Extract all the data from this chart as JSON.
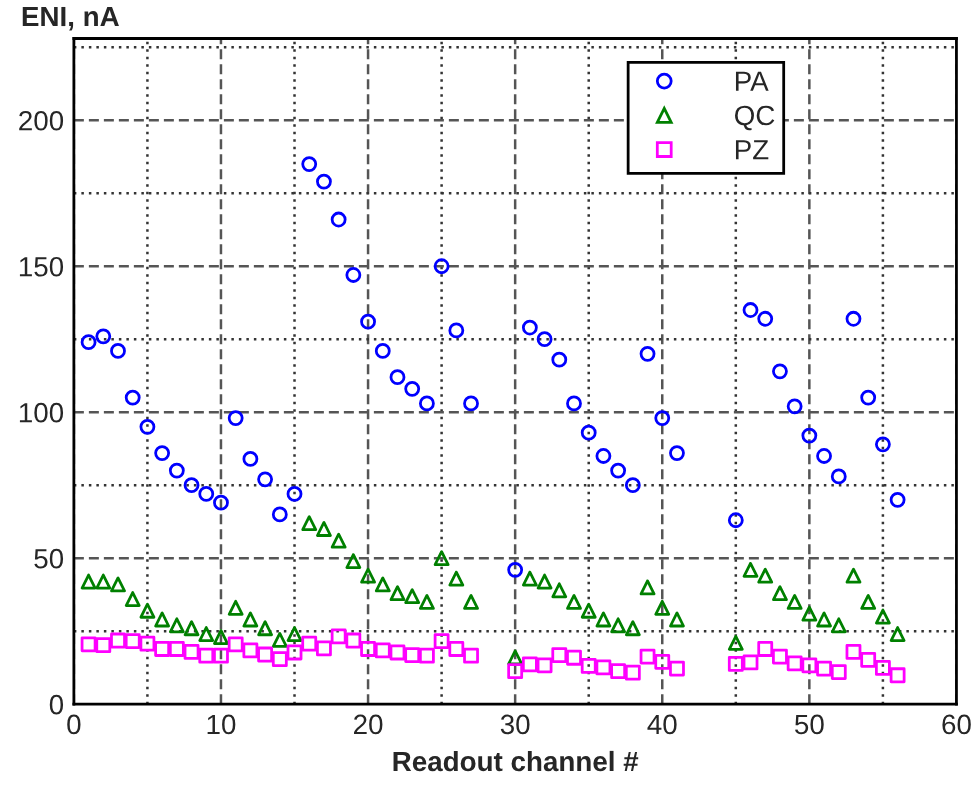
{
  "chart_data": {
    "type": "scatter",
    "ylabel": "ENI, nA",
    "xlabel": "Readout channel #",
    "x": [
      1,
      2,
      3,
      4,
      5,
      6,
      7,
      8,
      9,
      10,
      11,
      12,
      13,
      14,
      15,
      16,
      17,
      18,
      19,
      20,
      21,
      22,
      23,
      24,
      25,
      26,
      27,
      30,
      31,
      32,
      33,
      34,
      35,
      36,
      37,
      38,
      39,
      40,
      41,
      45,
      46,
      47,
      48,
      49,
      50,
      51,
      52,
      53,
      54,
      55,
      56
    ],
    "series": [
      {
        "name": "PA",
        "color": "#0000ff",
        "marker": "circle",
        "values": [
          124,
          126,
          121,
          105,
          95,
          86,
          80,
          75,
          72,
          69,
          98,
          84,
          77,
          65,
          72,
          185,
          179,
          166,
          147,
          131,
          121,
          112,
          108,
          103,
          150,
          128,
          103,
          46,
          129,
          125,
          118,
          103,
          93,
          85,
          80,
          75,
          120,
          98,
          86,
          63,
          135,
          132,
          114,
          102,
          92,
          85,
          78,
          132,
          105,
          89,
          70
        ]
      },
      {
        "name": "QC",
        "color": "#008000",
        "marker": "triangle",
        "values": [
          42,
          42,
          41,
          36,
          32,
          29,
          27,
          26,
          24,
          23,
          33,
          29,
          26,
          22,
          24,
          62,
          60,
          56,
          49,
          44,
          41,
          38,
          37,
          35,
          50,
          43,
          35,
          16,
          43,
          42,
          39,
          35,
          32,
          29,
          27,
          26,
          40,
          33,
          29,
          21,
          46,
          44,
          38,
          35,
          31,
          29,
          27,
          44,
          35,
          30,
          24
        ]
      },
      {
        "name": "PZ",
        "color": "#ff00ff",
        "marker": "square",
        "values": [
          20.5,
          20.2,
          21.8,
          21.6,
          20.7,
          18.9,
          18.9,
          17.9,
          16.6,
          16.6,
          20.5,
          18.4,
          17,
          15.4,
          17.7,
          20.7,
          19.1,
          23.2,
          21.8,
          18.9,
          18.4,
          17.7,
          16.8,
          16.6,
          21.6,
          18.9,
          16.6,
          11.3,
          13.6,
          13.3,
          16.8,
          15.9,
          13.1,
          12.6,
          11.3,
          10.8,
          16.3,
          14.5,
          12.2,
          13.8,
          14.3,
          18.9,
          16.3,
          14,
          13.3,
          12.2,
          11,
          17.9,
          15.2,
          12.4,
          9.9
        ]
      }
    ],
    "xlim": [
      0,
      60
    ],
    "xticks": [
      0,
      10,
      20,
      30,
      40,
      50,
      60
    ],
    "ylim": [
      0,
      228
    ],
    "yticks": [
      0,
      50,
      100,
      150,
      200
    ],
    "grid": true,
    "legend": "top right"
  }
}
